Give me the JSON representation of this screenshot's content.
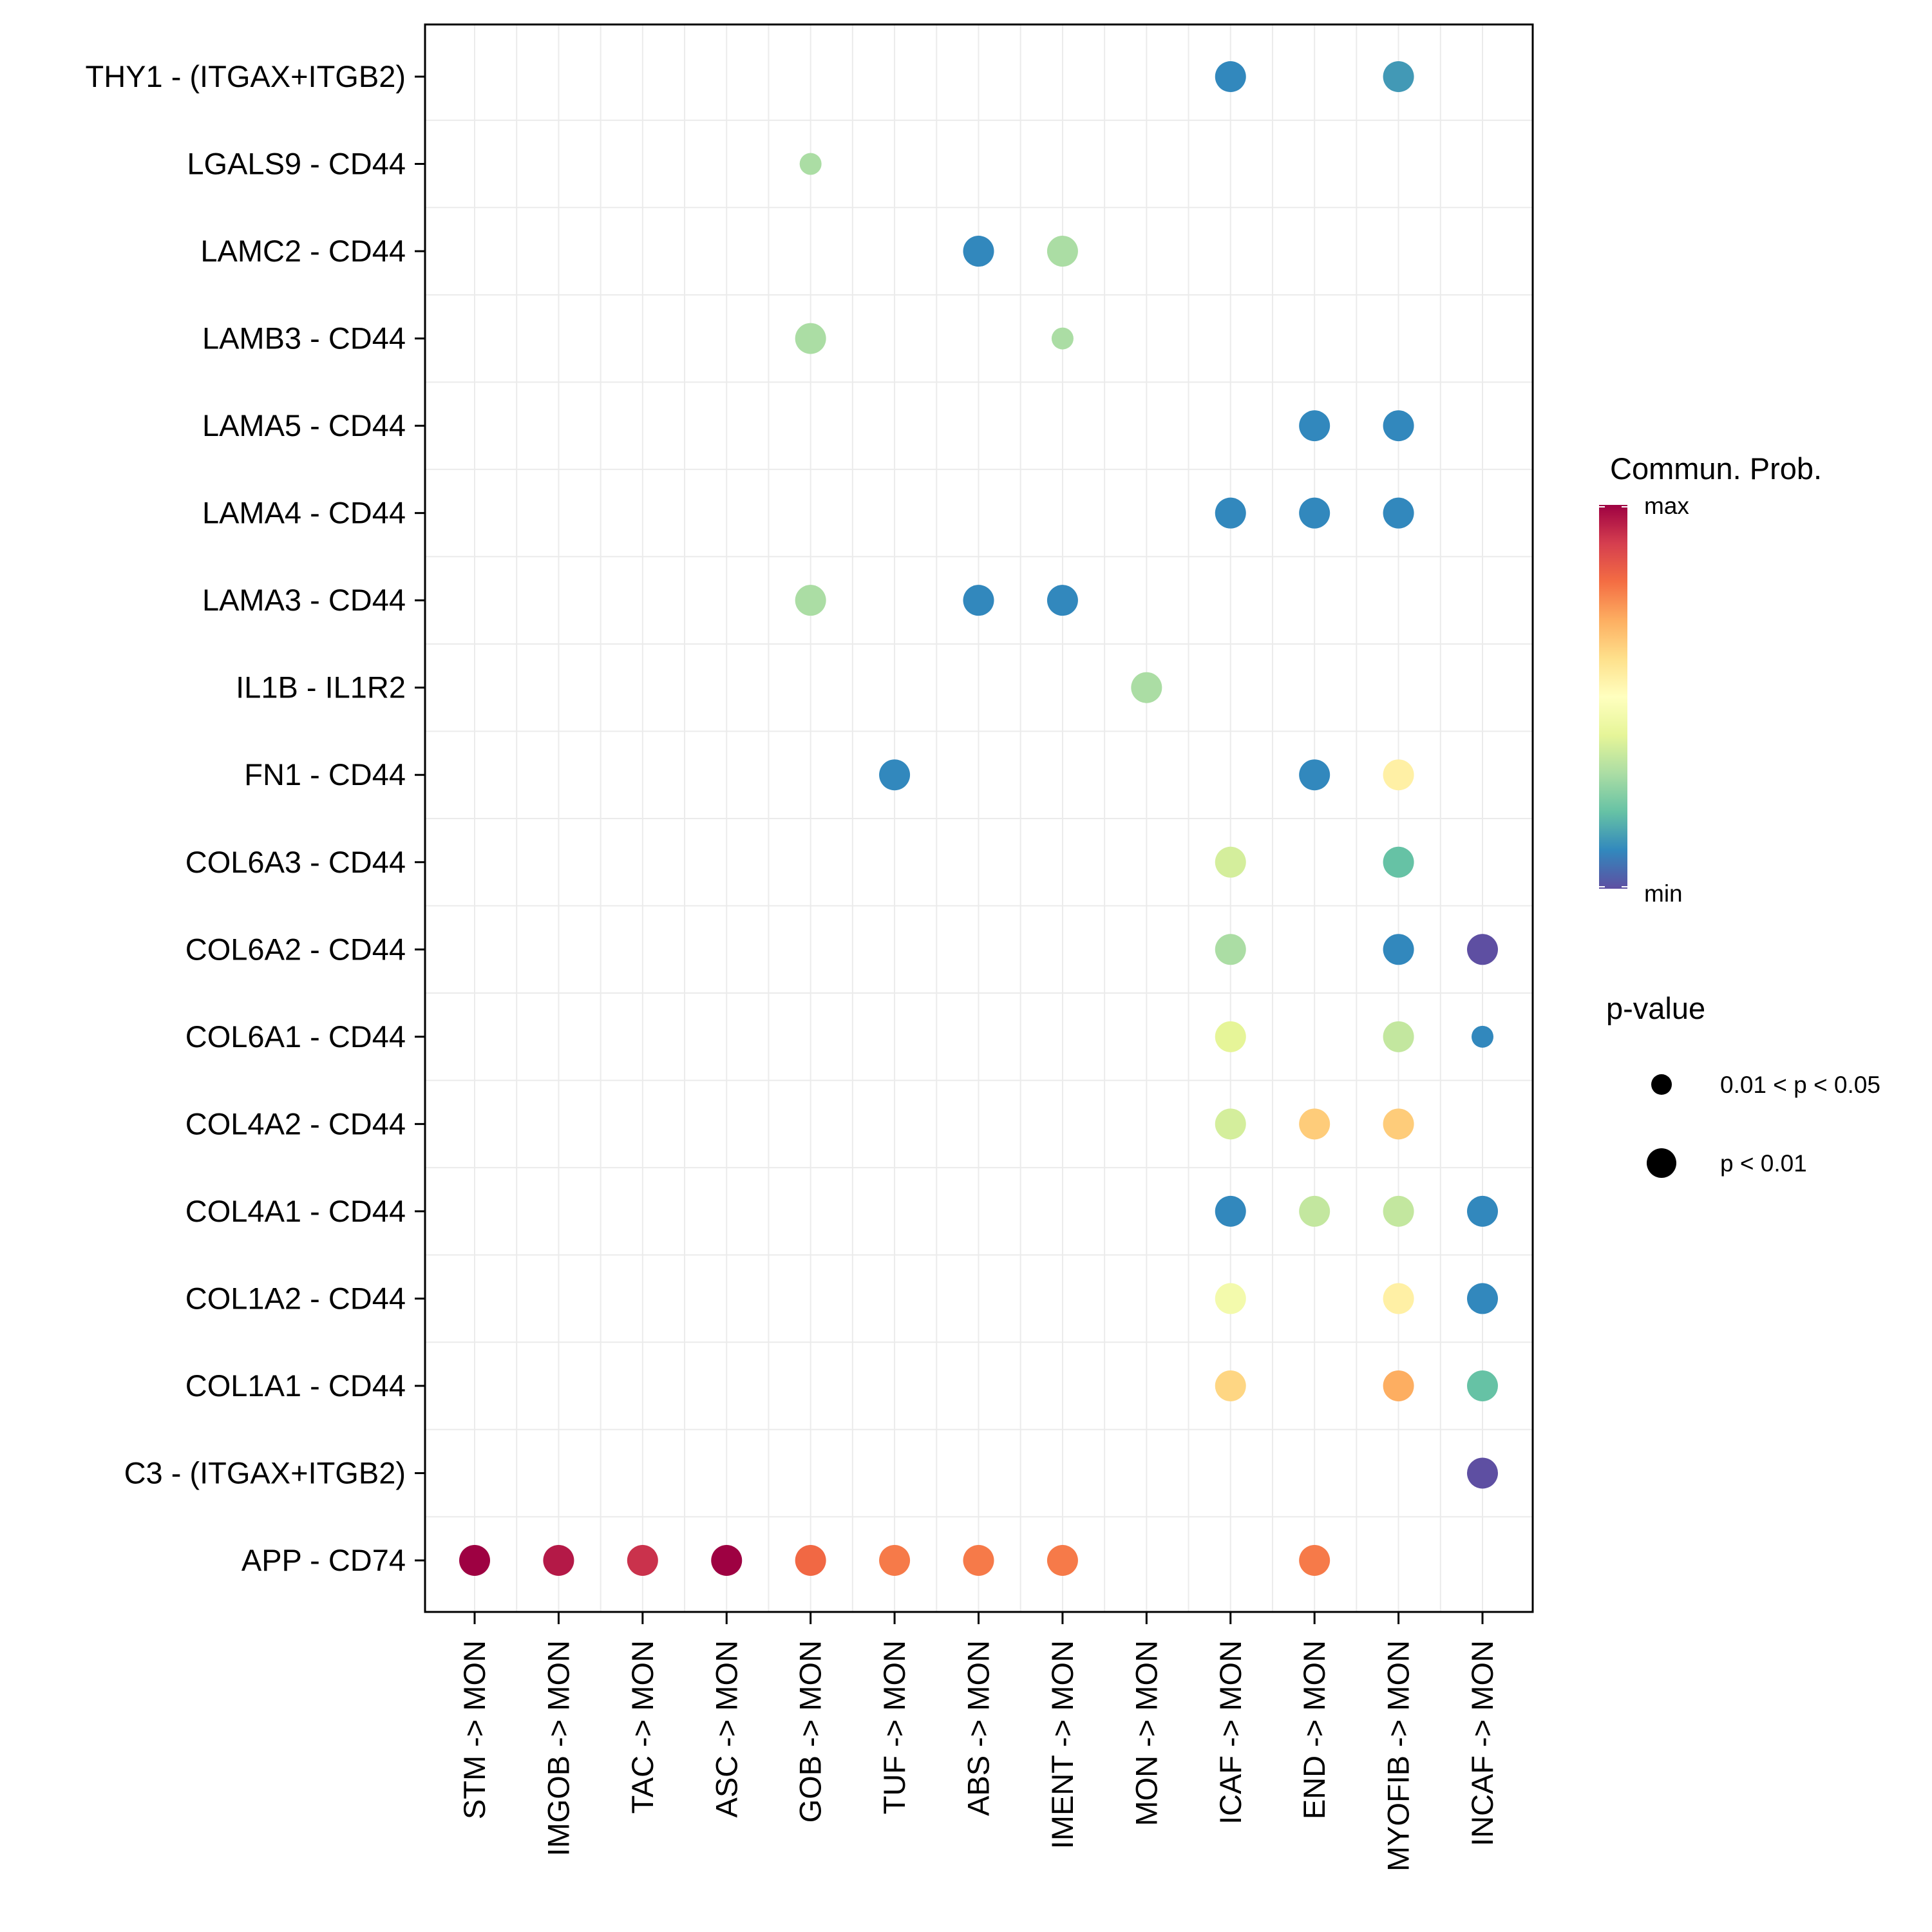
{
  "chart_data": {
    "type": "scatter",
    "subtype": "dot-plot",
    "title": "",
    "xlabel": "",
    "ylabel": "",
    "grid": true,
    "x_categories": [
      "STM -> MON",
      "IMGOB -> MON",
      "TAC -> MON",
      "ASC -> MON",
      "GOB -> MON",
      "TUF -> MON",
      "ABS -> MON",
      "IMENT -> MON",
      "MON -> MON",
      "ICAF -> MON",
      "END -> MON",
      "MYOFIB -> MON",
      "INCAF -> MON"
    ],
    "y_categories_top_to_bottom": [
      "THY1 - (ITGAX+ITGB2)",
      "LGALS9 - CD44",
      "LAMC2 - CD44",
      "LAMB3 - CD44",
      "LAMA5 - CD44",
      "LAMA4 - CD44",
      "LAMA3 - CD44",
      "IL1B - IL1R2",
      "FN1 - CD44",
      "COL6A3 - CD44",
      "COL6A2 - CD44",
      "COL6A1 - CD44",
      "COL4A2 - CD44",
      "COL4A1 - CD44",
      "COL1A2 - CD44",
      "COL1A1 - CD44",
      "C3 - (ITGAX+ITGB2)",
      "APP - CD74"
    ],
    "color_scale": {
      "title": "Commun. Prob.",
      "max_label": "max",
      "min_label": "min",
      "palette_min_to_max": [
        "#5E4FA2",
        "#3288BD",
        "#66C2A5",
        "#ABDDA4",
        "#E6F598",
        "#FFFFBF",
        "#FEE08B",
        "#FDAE61",
        "#F46D43",
        "#D53E4F",
        "#9E0142"
      ]
    },
    "size_legend": {
      "title": "p-value",
      "entries": [
        {
          "label": "0.01 < p < 0.05",
          "level": "p05"
        },
        {
          "label": "p < 0.01",
          "level": "p01"
        }
      ]
    },
    "value_note": "prob is relative communication probability (0 = min, 1 = max) estimated from dot color",
    "points": [
      {
        "y": "THY1 - (ITGAX+ITGB2)",
        "x": "ICAF -> MON",
        "prob": 0.1,
        "pvalue": "p01"
      },
      {
        "y": "THY1 - (ITGAX+ITGB2)",
        "x": "MYOFIB -> MON",
        "prob": 0.13,
        "pvalue": "p01"
      },
      {
        "y": "LGALS9 - CD44",
        "x": "GOB -> MON",
        "prob": 0.3,
        "pvalue": "p05"
      },
      {
        "y": "LAMC2 - CD44",
        "x": "ABS -> MON",
        "prob": 0.1,
        "pvalue": "p01"
      },
      {
        "y": "LAMC2 - CD44",
        "x": "IMENT -> MON",
        "prob": 0.3,
        "pvalue": "p01"
      },
      {
        "y": "LAMB3 - CD44",
        "x": "GOB -> MON",
        "prob": 0.3,
        "pvalue": "p01"
      },
      {
        "y": "LAMB3 - CD44",
        "x": "IMENT -> MON",
        "prob": 0.3,
        "pvalue": "p05"
      },
      {
        "y": "LAMA5 - CD44",
        "x": "END -> MON",
        "prob": 0.1,
        "pvalue": "p01"
      },
      {
        "y": "LAMA5 - CD44",
        "x": "MYOFIB -> MON",
        "prob": 0.1,
        "pvalue": "p01"
      },
      {
        "y": "LAMA4 - CD44",
        "x": "ICAF -> MON",
        "prob": 0.1,
        "pvalue": "p01"
      },
      {
        "y": "LAMA4 - CD44",
        "x": "END -> MON",
        "prob": 0.1,
        "pvalue": "p01"
      },
      {
        "y": "LAMA4 - CD44",
        "x": "MYOFIB -> MON",
        "prob": 0.1,
        "pvalue": "p01"
      },
      {
        "y": "LAMA3 - CD44",
        "x": "GOB -> MON",
        "prob": 0.3,
        "pvalue": "p01"
      },
      {
        "y": "LAMA3 - CD44",
        "x": "ABS -> MON",
        "prob": 0.1,
        "pvalue": "p01"
      },
      {
        "y": "LAMA3 - CD44",
        "x": "IMENT -> MON",
        "prob": 0.1,
        "pvalue": "p01"
      },
      {
        "y": "IL1B - IL1R2",
        "x": "MON -> MON",
        "prob": 0.3,
        "pvalue": "p01"
      },
      {
        "y": "FN1 - CD44",
        "x": "TUF -> MON",
        "prob": 0.1,
        "pvalue": "p01"
      },
      {
        "y": "FN1 - CD44",
        "x": "END -> MON",
        "prob": 0.1,
        "pvalue": "p01"
      },
      {
        "y": "FN1 - CD44",
        "x": "MYOFIB -> MON",
        "prob": 0.55,
        "pvalue": "p01"
      },
      {
        "y": "COL6A3 - CD44",
        "x": "ICAF -> MON",
        "prob": 0.37,
        "pvalue": "p01"
      },
      {
        "y": "COL6A3 - CD44",
        "x": "MYOFIB -> MON",
        "prob": 0.2,
        "pvalue": "p01"
      },
      {
        "y": "COL6A2 - CD44",
        "x": "ICAF -> MON",
        "prob": 0.3,
        "pvalue": "p01"
      },
      {
        "y": "COL6A2 - CD44",
        "x": "MYOFIB -> MON",
        "prob": 0.1,
        "pvalue": "p01"
      },
      {
        "y": "COL6A2 - CD44",
        "x": "INCAF -> MON",
        "prob": 0.0,
        "pvalue": "p01"
      },
      {
        "y": "COL6A1 - CD44",
        "x": "ICAF -> MON",
        "prob": 0.4,
        "pvalue": "p01"
      },
      {
        "y": "COL6A1 - CD44",
        "x": "MYOFIB -> MON",
        "prob": 0.34,
        "pvalue": "p01"
      },
      {
        "y": "COL6A1 - CD44",
        "x": "INCAF -> MON",
        "prob": 0.1,
        "pvalue": "p05"
      },
      {
        "y": "COL4A2 - CD44",
        "x": "ICAF -> MON",
        "prob": 0.37,
        "pvalue": "p01"
      },
      {
        "y": "COL4A2 - CD44",
        "x": "END -> MON",
        "prob": 0.64,
        "pvalue": "p01"
      },
      {
        "y": "COL4A2 - CD44",
        "x": "MYOFIB -> MON",
        "prob": 0.64,
        "pvalue": "p01"
      },
      {
        "y": "COL4A1 - CD44",
        "x": "ICAF -> MON",
        "prob": 0.1,
        "pvalue": "p01"
      },
      {
        "y": "COL4A1 - CD44",
        "x": "END -> MON",
        "prob": 0.34,
        "pvalue": "p01"
      },
      {
        "y": "COL4A1 - CD44",
        "x": "MYOFIB -> MON",
        "prob": 0.34,
        "pvalue": "p01"
      },
      {
        "y": "COL4A1 - CD44",
        "x": "INCAF -> MON",
        "prob": 0.1,
        "pvalue": "p01"
      },
      {
        "y": "COL1A2 - CD44",
        "x": "ICAF -> MON",
        "prob": 0.45,
        "pvalue": "p01"
      },
      {
        "y": "COL1A2 - CD44",
        "x": "MYOFIB -> MON",
        "prob": 0.55,
        "pvalue": "p01"
      },
      {
        "y": "COL1A2 - CD44",
        "x": "INCAF -> MON",
        "prob": 0.1,
        "pvalue": "p01"
      },
      {
        "y": "COL1A1 - CD44",
        "x": "ICAF -> MON",
        "prob": 0.62,
        "pvalue": "p01"
      },
      {
        "y": "COL1A1 - CD44",
        "x": "MYOFIB -> MON",
        "prob": 0.7,
        "pvalue": "p01"
      },
      {
        "y": "COL1A1 - CD44",
        "x": "INCAF -> MON",
        "prob": 0.2,
        "pvalue": "p01"
      },
      {
        "y": "C3 - (ITGAX+ITGB2)",
        "x": "INCAF -> MON",
        "prob": 0.0,
        "pvalue": "p01"
      },
      {
        "y": "APP - CD74",
        "x": "STM -> MON",
        "prob": 1.0,
        "pvalue": "p01"
      },
      {
        "y": "APP - CD74",
        "x": "IMGOB -> MON",
        "prob": 0.96,
        "pvalue": "p01"
      },
      {
        "y": "APP - CD74",
        "x": "TAC -> MON",
        "prob": 0.92,
        "pvalue": "p01"
      },
      {
        "y": "APP - CD74",
        "x": "ASC -> MON",
        "prob": 1.0,
        "pvalue": "p01"
      },
      {
        "y": "APP - CD74",
        "x": "GOB -> MON",
        "prob": 0.81,
        "pvalue": "p01"
      },
      {
        "y": "APP - CD74",
        "x": "TUF -> MON",
        "prob": 0.78,
        "pvalue": "p01"
      },
      {
        "y": "APP - CD74",
        "x": "ABS -> MON",
        "prob": 0.78,
        "pvalue": "p01"
      },
      {
        "y": "APP - CD74",
        "x": "IMENT -> MON",
        "prob": 0.78,
        "pvalue": "p01"
      },
      {
        "y": "APP - CD74",
        "x": "END -> MON",
        "prob": 0.78,
        "pvalue": "p01"
      }
    ]
  }
}
